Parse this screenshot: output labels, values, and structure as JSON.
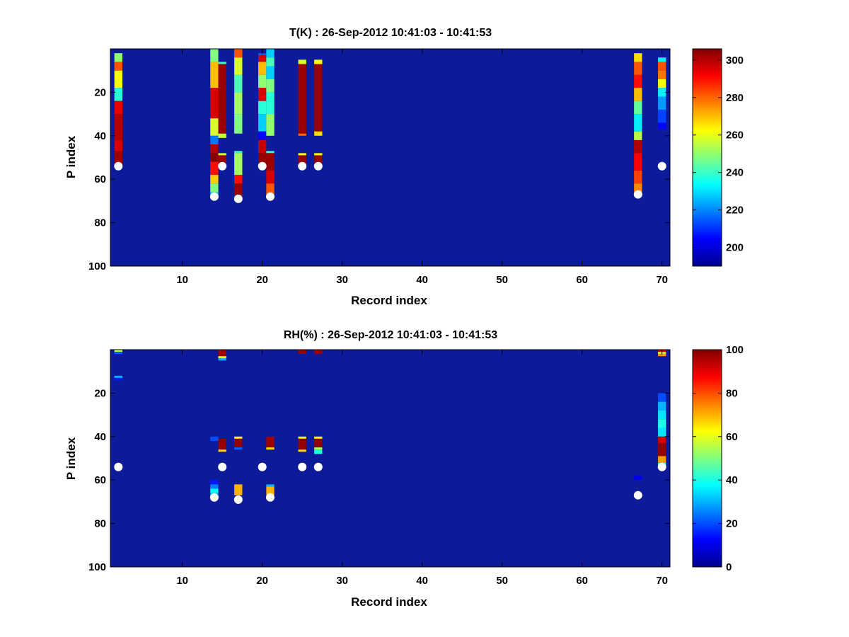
{
  "colormap": {
    "name": "jet",
    "stops": [
      "#00008f",
      "#0000ff",
      "#00ffff",
      "#ffff00",
      "#ff0000",
      "#800000"
    ],
    "background": "#0d1a9a"
  },
  "chart_data": [
    {
      "type": "heatmap",
      "id": "temperature",
      "title": "T(K) : 26-Sep-2012 10:41:03 - 10:41:53",
      "xlabel": "Record index",
      "ylabel": "P index",
      "xlim": [
        1,
        71
      ],
      "ylim": [
        0,
        100
      ],
      "y_reversed": true,
      "xticks": [
        10,
        20,
        30,
        40,
        50,
        60,
        70
      ],
      "yticks": [
        20,
        40,
        60,
        80,
        100
      ],
      "colorbar": {
        "range": [
          190,
          306
        ],
        "ticks": [
          200,
          220,
          240,
          260,
          280,
          300
        ]
      },
      "columns": [
        {
          "x": 2,
          "segments": [
            [
              2,
              6,
              250
            ],
            [
              6,
              10,
              282
            ],
            [
              10,
              18,
              262
            ],
            [
              18,
              24,
              238
            ],
            [
              24,
              30,
              294
            ],
            [
              30,
              42,
              300
            ],
            [
              42,
              47,
              296
            ],
            [
              47,
              53,
              303
            ]
          ]
        },
        {
          "x": 14,
          "segments": [
            [
              0,
              6,
              248
            ],
            [
              6,
              18,
              270
            ],
            [
              18,
              32,
              296
            ],
            [
              32,
              40,
              258
            ],
            [
              40,
              44,
              218
            ],
            [
              44,
              48,
              300
            ],
            [
              48,
              52,
              305
            ],
            [
              52,
              58,
              290
            ],
            [
              58,
              62,
              268
            ],
            [
              62,
              66,
              248
            ],
            [
              66,
              68,
              228
            ]
          ]
        },
        {
          "x": 15,
          "segments": [
            [
              6,
              7,
              240
            ],
            [
              7,
              39,
              303
            ],
            [
              39,
              41,
              256
            ],
            [
              48,
              49,
              258
            ],
            [
              49,
              54,
              303
            ]
          ]
        },
        {
          "x": 17,
          "segments": [
            [
              0,
              4,
              282
            ],
            [
              4,
              12,
              258
            ],
            [
              12,
              20,
              242
            ],
            [
              20,
              30,
              252
            ],
            [
              30,
              39,
              248
            ],
            [
              47,
              48,
              240
            ],
            [
              48,
              58,
              252
            ],
            [
              58,
              62,
              290
            ],
            [
              62,
              68,
              303
            ]
          ]
        },
        {
          "x": 20,
          "segments": [
            [
              2,
              3,
              215
            ],
            [
              3,
              6,
              296
            ],
            [
              6,
              12,
              270
            ],
            [
              12,
              18,
              250
            ],
            [
              18,
              24,
              296
            ],
            [
              24,
              30,
              238
            ],
            [
              30,
              38,
              228
            ],
            [
              38,
              42,
              205
            ],
            [
              42,
              48,
              298
            ],
            [
              48,
              54,
              303
            ]
          ]
        },
        {
          "x": 21,
          "segments": [
            [
              0,
              4,
              228
            ],
            [
              4,
              8,
              242
            ],
            [
              8,
              14,
              228
            ],
            [
              14,
              20,
              248
            ],
            [
              20,
              30,
              238
            ],
            [
              30,
              40,
              250
            ],
            [
              47,
              48,
              240
            ],
            [
              48,
              56,
              303
            ],
            [
              56,
              62,
              296
            ],
            [
              62,
              67,
              282
            ]
          ]
        },
        {
          "x": 25,
          "segments": [
            [
              5,
              7,
              258
            ],
            [
              7,
              39,
              303
            ],
            [
              39,
              40,
              280
            ],
            [
              48,
              49,
              262
            ],
            [
              49,
              53,
              303
            ]
          ]
        },
        {
          "x": 27,
          "segments": [
            [
              5,
              7,
              262
            ],
            [
              7,
              38,
              303
            ],
            [
              38,
              40,
              266
            ],
            [
              48,
              49,
              262
            ],
            [
              49,
              53,
              303
            ]
          ]
        },
        {
          "x": 67,
          "segments": [
            [
              2,
              6,
              266
            ],
            [
              6,
              12,
              282
            ],
            [
              12,
              18,
              290
            ],
            [
              18,
              24,
              270
            ],
            [
              24,
              30,
              245
            ],
            [
              30,
              38,
              232
            ],
            [
              38,
              42,
              255
            ],
            [
              42,
              48,
              300
            ],
            [
              48,
              56,
              292
            ],
            [
              56,
              62,
              284
            ],
            [
              62,
              66,
              276
            ]
          ]
        },
        {
          "x": 70,
          "segments": [
            [
              4,
              6,
              232
            ],
            [
              6,
              10,
              282
            ],
            [
              10,
              14,
              278
            ],
            [
              14,
              18,
              262
            ],
            [
              18,
              22,
              232
            ],
            [
              22,
              28,
              222
            ],
            [
              28,
              34,
              212
            ],
            [
              34,
              37,
              205
            ]
          ]
        }
      ],
      "markers": [
        {
          "x": 2,
          "y": 54
        },
        {
          "x": 14,
          "y": 68
        },
        {
          "x": 15,
          "y": 54
        },
        {
          "x": 17,
          "y": 69
        },
        {
          "x": 20,
          "y": 54
        },
        {
          "x": 21,
          "y": 68
        },
        {
          "x": 25,
          "y": 54
        },
        {
          "x": 27,
          "y": 54
        },
        {
          "x": 67,
          "y": 67
        },
        {
          "x": 70,
          "y": 54
        }
      ]
    },
    {
      "type": "heatmap",
      "id": "relative-humidity",
      "title": "RH(%) : 26-Sep-2012 10:41:03 - 10:41:53",
      "xlabel": "Record index",
      "ylabel": "P index",
      "xlim": [
        1,
        71
      ],
      "ylim": [
        0,
        100
      ],
      "y_reversed": true,
      "xticks": [
        10,
        20,
        30,
        40,
        50,
        60,
        70
      ],
      "yticks": [
        20,
        40,
        60,
        80,
        100
      ],
      "colorbar": {
        "range": [
          0,
          100
        ],
        "ticks": [
          0,
          20,
          40,
          60,
          80,
          100
        ]
      },
      "columns": [
        {
          "x": 2,
          "segments": [
            [
              0,
              1,
              55
            ],
            [
              1,
              2,
              22
            ],
            [
              12,
              13,
              30
            ],
            [
              13,
              14,
              15
            ]
          ]
        },
        {
          "x": 14,
          "segments": [
            [
              40,
              42,
              20
            ],
            [
              60,
              62,
              15
            ],
            [
              62,
              64,
              25
            ],
            [
              64,
              66,
              38
            ],
            [
              66,
              68,
              30
            ]
          ]
        },
        {
          "x": 15,
          "segments": [
            [
              0,
              3,
              97
            ],
            [
              3,
              4,
              60
            ],
            [
              4,
              5,
              30
            ],
            [
              41,
              46,
              98
            ],
            [
              46,
              47,
              66
            ]
          ]
        },
        {
          "x": 17,
          "segments": [
            [
              40,
              41,
              62
            ],
            [
              41,
              45,
              98
            ],
            [
              45,
              46,
              22
            ],
            [
              62,
              67,
              70
            ]
          ]
        },
        {
          "x": 21,
          "segments": [
            [
              40,
              45,
              97
            ],
            [
              45,
              46,
              66
            ],
            [
              62,
              63,
              30
            ],
            [
              63,
              67,
              70
            ]
          ]
        },
        {
          "x": 25,
          "segments": [
            [
              0,
              2,
              97
            ],
            [
              40,
              41,
              60
            ],
            [
              41,
              46,
              98
            ],
            [
              46,
              47,
              66
            ]
          ]
        },
        {
          "x": 27,
          "segments": [
            [
              0,
              2,
              97
            ],
            [
              40,
              41,
              62
            ],
            [
              41,
              45,
              98
            ],
            [
              45,
              46,
              55
            ],
            [
              46,
              48,
              40
            ]
          ]
        },
        {
          "x": 67,
          "segments": [
            [
              58,
              60,
              10
            ]
          ]
        },
        {
          "x": 70,
          "segments": [
            [
              0,
              1,
              92
            ],
            [
              1,
              2,
              55
            ],
            [
              2,
              3,
              72
            ],
            [
              20,
              24,
              20
            ],
            [
              24,
              28,
              30
            ],
            [
              28,
              32,
              35
            ],
            [
              32,
              36,
              40
            ],
            [
              36,
              40,
              35
            ],
            [
              40,
              43,
              92
            ],
            [
              43,
              49,
              98
            ],
            [
              49,
              52,
              72
            ],
            [
              52,
              54,
              40
            ]
          ]
        }
      ],
      "markers": [
        {
          "x": 2,
          "y": 54
        },
        {
          "x": 14,
          "y": 68
        },
        {
          "x": 15,
          "y": 54
        },
        {
          "x": 17,
          "y": 69
        },
        {
          "x": 20,
          "y": 54
        },
        {
          "x": 21,
          "y": 68
        },
        {
          "x": 25,
          "y": 54
        },
        {
          "x": 27,
          "y": 54
        },
        {
          "x": 67,
          "y": 67
        },
        {
          "x": 70,
          "y": 54
        }
      ]
    }
  ]
}
